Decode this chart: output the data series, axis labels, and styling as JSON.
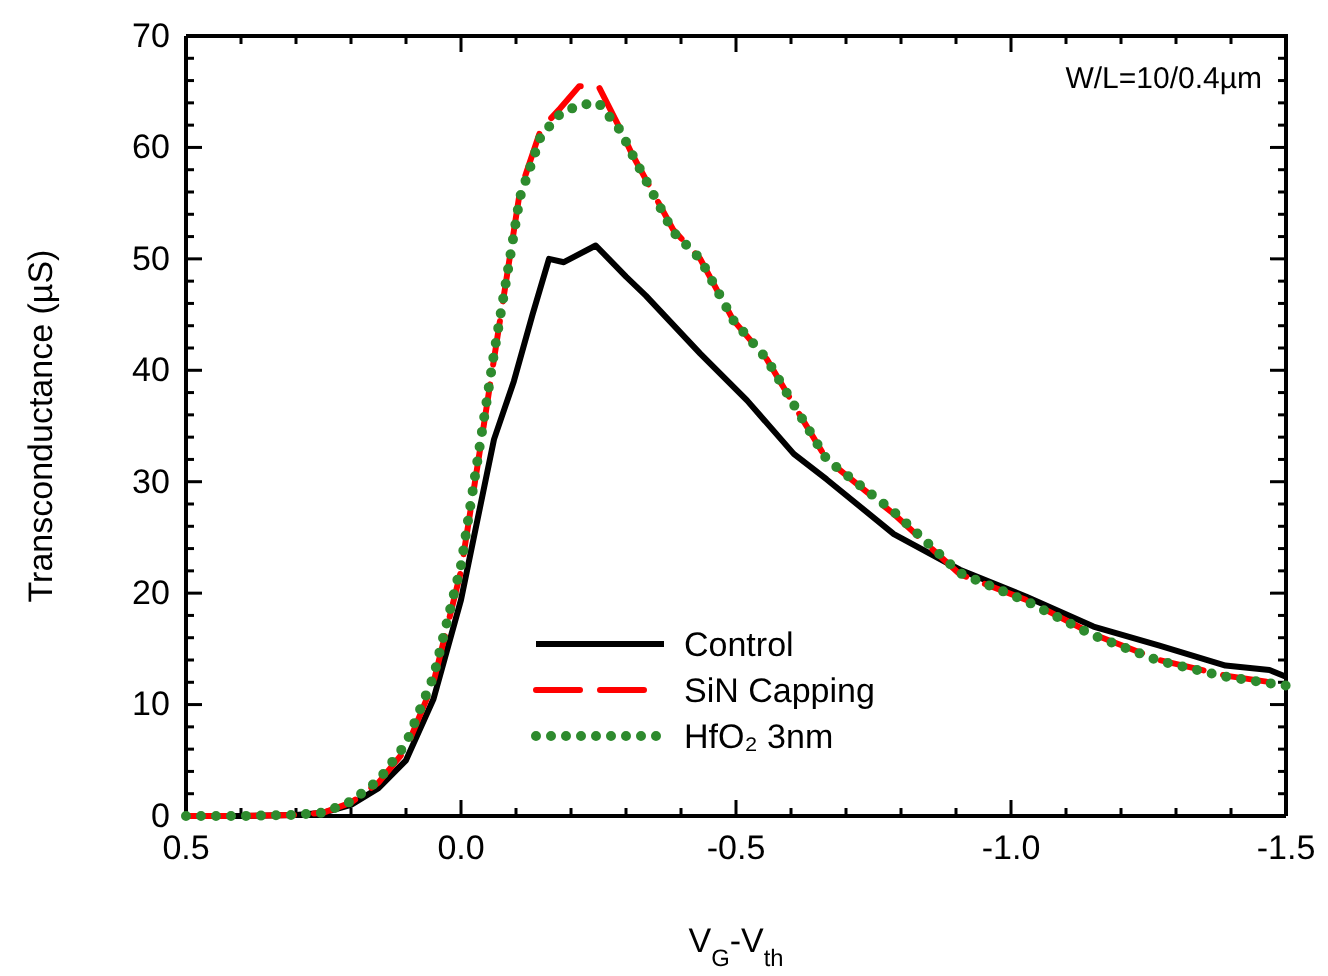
{
  "chart_data": {
    "type": "line",
    "xlabel": "V$_{G}$-V$_{th}$",
    "ylabel": "Transconductance (µS)",
    "annotations": [
      "W/L=10/0.4µm"
    ],
    "xlim": [
      0.5,
      -1.5
    ],
    "ylim": [
      0,
      70
    ],
    "xticks": [
      {
        "value": 0.5,
        "label": "0.5"
      },
      {
        "value": 0.4,
        "label": null
      },
      {
        "value": 0.3,
        "label": null
      },
      {
        "value": 0.2,
        "label": null
      },
      {
        "value": 0.1,
        "label": null
      },
      {
        "value": 0,
        "label": "0.0"
      },
      {
        "value": -0.1,
        "label": null
      },
      {
        "value": -0.2,
        "label": null
      },
      {
        "value": -0.3,
        "label": null
      },
      {
        "value": -0.4,
        "label": null
      },
      {
        "value": -0.5,
        "label": "-0.5"
      },
      {
        "value": -0.6,
        "label": null
      },
      {
        "value": -0.7,
        "label": null
      },
      {
        "value": -0.8,
        "label": null
      },
      {
        "value": -0.9,
        "label": null
      },
      {
        "value": -1,
        "label": "-1.0"
      },
      {
        "value": -1.1,
        "label": null
      },
      {
        "value": -1.2,
        "label": null
      },
      {
        "value": -1.3,
        "label": null
      },
      {
        "value": -1.4,
        "label": null
      },
      {
        "value": -1.5,
        "label": "-1.5"
      }
    ],
    "yticks": [
      0,
      {
        "value": 2,
        "label": null
      },
      {
        "value": 4,
        "label": null
      },
      {
        "value": 6,
        "label": null
      },
      {
        "value": 8,
        "label": null
      },
      10,
      {
        "value": 12,
        "label": null
      },
      {
        "value": 14,
        "label": null
      },
      {
        "value": 16,
        "label": null
      },
      {
        "value": 18,
        "label": null
      },
      20,
      {
        "value": 22,
        "label": null
      },
      {
        "value": 24,
        "label": null
      },
      {
        "value": 26,
        "label": null
      },
      {
        "value": 28,
        "label": null
      },
      30,
      {
        "value": 32,
        "label": null
      },
      {
        "value": 34,
        "label": null
      },
      {
        "value": 36,
        "label": null
      },
      {
        "value": 38,
        "label": null
      },
      40,
      {
        "value": 42,
        "label": null
      },
      {
        "value": 44,
        "label": null
      },
      {
        "value": 46,
        "label": null
      },
      {
        "value": 48,
        "label": null
      },
      50,
      {
        "value": 52,
        "label": null
      },
      {
        "value": 54,
        "label": null
      },
      {
        "value": 56,
        "label": null
      },
      {
        "value": 58,
        "label": null
      },
      60,
      {
        "value": 62,
        "label": null
      },
      {
        "value": 64,
        "label": null
      },
      {
        "value": 66,
        "label": null
      },
      {
        "value": 68,
        "label": null
      },
      70
    ],
    "grid": false,
    "legend": "bottom right",
    "series": [
      {
        "name": "Control",
        "color": "#000000",
        "line_style": "solid",
        "x": [
          0.5,
          0.4,
          0.3,
          0.25,
          0.2,
          0.15,
          0.1,
          0.05,
          0.0,
          -0.06,
          -0.096,
          -0.13,
          -0.16,
          -0.187,
          -0.245,
          -0.3,
          -0.336,
          -0.435,
          -0.52,
          -0.605,
          -0.665,
          -0.787,
          -0.907,
          -1.027,
          -1.15,
          -1.27,
          -1.39,
          -1.47,
          -1.5
        ],
        "values": [
          0,
          0,
          0.1,
          0.3,
          1,
          2.5,
          5,
          10.5,
          19.4,
          33.8,
          39,
          45,
          50,
          49.7,
          51.2,
          48.4,
          46.7,
          41.5,
          37.3,
          32.5,
          30.2,
          25.3,
          22.1,
          19.7,
          17,
          15.3,
          13.5,
          13.1,
          12.5
        ]
      },
      {
        "name": "SiN Capping",
        "color": "#ff0000",
        "line_style": "dashed",
        "x": [
          0.5,
          0.4,
          0.3,
          0.25,
          0.2,
          0.15,
          0.1,
          0.05,
          0.0,
          -0.035,
          -0.06,
          -0.082,
          -0.107,
          -0.145,
          -0.18,
          -0.215,
          -0.25,
          -0.29,
          -0.31,
          -0.386,
          -0.435,
          -0.495,
          -0.556,
          -0.616,
          -0.665,
          -0.787,
          -0.907,
          -1.027,
          -1.15,
          -1.27,
          -1.39,
          -1.5
        ],
        "values": [
          0,
          0,
          0.1,
          0.3,
          1.2,
          3,
          6,
          12,
          22,
          33,
          41,
          48,
          56,
          61.6,
          63.5,
          65.5,
          65.5,
          61.6,
          59.5,
          52.6,
          50,
          44.5,
          41,
          36,
          32,
          27.1,
          21.7,
          19.4,
          16.3,
          14,
          12.6,
          11.8
        ]
      },
      {
        "name": "HfO₂ 3nm",
        "color": "#2e8b2e",
        "line_style": "dotted",
        "x": [
          0.5,
          0.4,
          0.3,
          0.25,
          0.2,
          0.15,
          0.1,
          0.05,
          0.0,
          -0.035,
          -0.06,
          -0.082,
          -0.107,
          -0.145,
          -0.18,
          -0.215,
          -0.25,
          -0.29,
          -0.31,
          -0.386,
          -0.435,
          -0.495,
          -0.556,
          -0.616,
          -0.665,
          -0.787,
          -0.907,
          -1.027,
          -1.15,
          -1.27,
          -1.39,
          -1.5
        ],
        "values": [
          0,
          0,
          0.1,
          0.3,
          1.3,
          3.2,
          6.5,
          12.5,
          22.5,
          33.5,
          41.5,
          48,
          55.5,
          61,
          63,
          63.8,
          64,
          61.5,
          59.5,
          52.4,
          50,
          44.5,
          41,
          36,
          32,
          27.3,
          21.8,
          19.3,
          16.2,
          13.9,
          12.5,
          11.7
        ]
      }
    ]
  }
}
